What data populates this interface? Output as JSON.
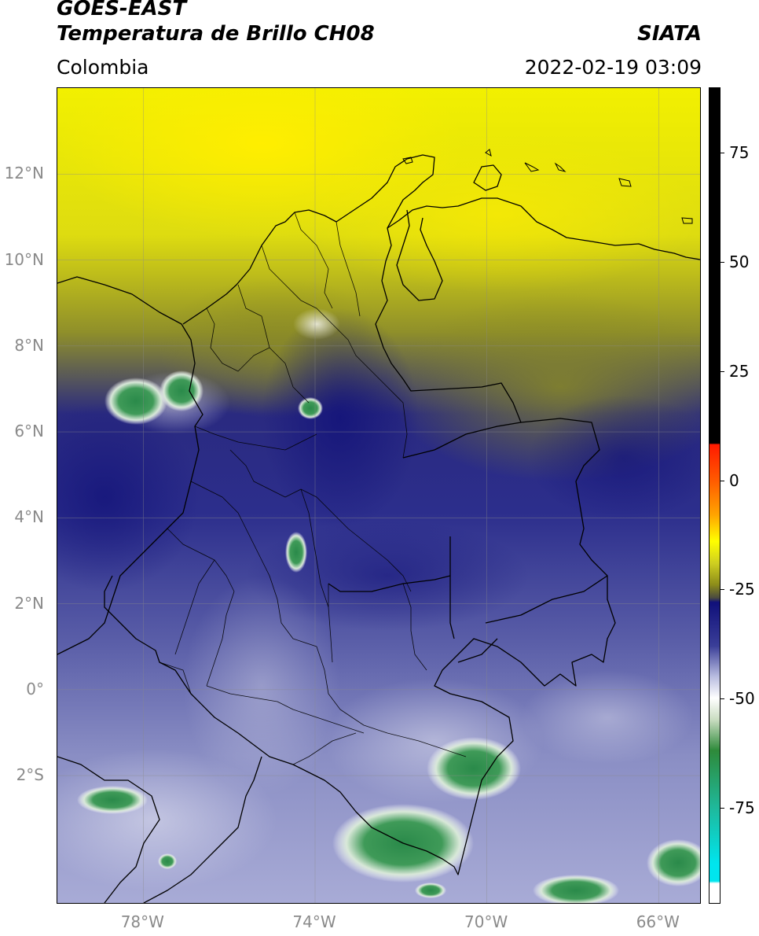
{
  "header": {
    "title_line_1": "GOES-EAST",
    "title_line_2": "Temperatura de Brillo CH08",
    "organization": "SIATA",
    "region": "Colombia",
    "datetime": "2022-02-19 03:09"
  },
  "map": {
    "lon_range": [
      -80,
      -65
    ],
    "lat_range": [
      -5,
      14
    ],
    "lat_labels": [
      {
        "lat": 12,
        "text": "12°N"
      },
      {
        "lat": 10,
        "text": "10°N"
      },
      {
        "lat": 8,
        "text": "8°N"
      },
      {
        "lat": 6,
        "text": "6°N"
      },
      {
        "lat": 4,
        "text": "4°N"
      },
      {
        "lat": 2,
        "text": "2°N"
      },
      {
        "lat": 0,
        "text": "0°"
      },
      {
        "lat": -2,
        "text": "2°S"
      }
    ],
    "lon_labels": [
      {
        "lon": -78,
        "text": "78°W"
      },
      {
        "lon": -74,
        "text": "74°W"
      },
      {
        "lon": -70,
        "text": "70°W"
      },
      {
        "lon": -66,
        "text": "66°W"
      }
    ],
    "gridlines": true
  },
  "colorbar": {
    "range": [
      -97,
      90
    ],
    "ticks": [
      {
        "value": 75,
        "text": "75"
      },
      {
        "value": 50,
        "text": "50"
      },
      {
        "value": 25,
        "text": "25"
      },
      {
        "value": 0,
        "text": "0"
      },
      {
        "value": -25,
        "text": "-25"
      },
      {
        "value": -50,
        "text": "-50"
      },
      {
        "value": -75,
        "text": "-75"
      }
    ],
    "colors": {
      "above_8": "#000000",
      "red": "#ff1a00",
      "orange": "#ffa500",
      "yellow": "#ffff00",
      "olive": "#8c8c1a",
      "navy": "#10107a",
      "lavender": "#b8bce0",
      "white": "#ffffff",
      "green": "#2e8a3a",
      "teal": "#1fb89a",
      "cyan": "#00e5ee"
    }
  }
}
